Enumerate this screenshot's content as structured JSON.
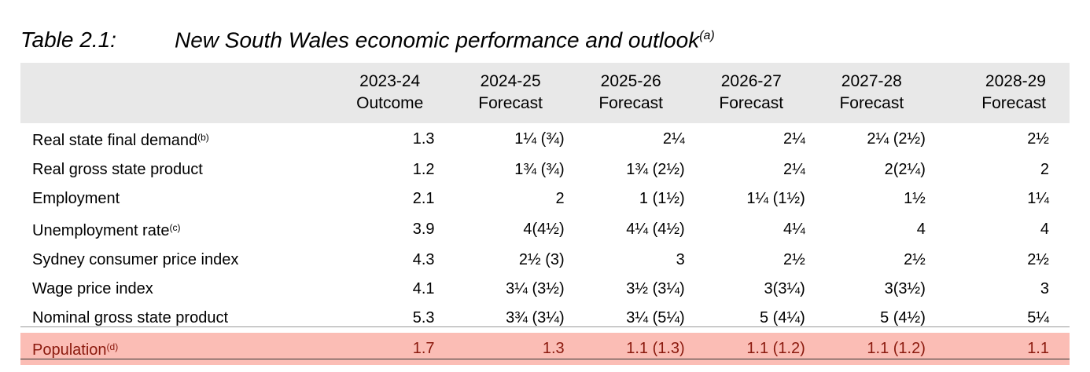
{
  "title": {
    "number": "Table 2.1:",
    "text": "New South Wales economic performance and outlook",
    "footnote": "(a)"
  },
  "columns": [
    {
      "year": "2023-24",
      "status": "Outcome"
    },
    {
      "year": "2024-25",
      "status": "Forecast"
    },
    {
      "year": "2025-26",
      "status": "Forecast"
    },
    {
      "year": "2026-27",
      "status": "Forecast"
    },
    {
      "year": "2027-28",
      "status": "Forecast"
    },
    {
      "year": "2028-29",
      "status": "Forecast"
    }
  ],
  "rows": [
    {
      "label": "Real state final demand",
      "note": "(b)",
      "values": [
        "1.3",
        "1¼ (¾)",
        "2¼",
        "2¼",
        "2¼ (2½)",
        "2½"
      ]
    },
    {
      "label": "Real gross state product",
      "note": "",
      "values": [
        "1.2",
        "1¾ (¾)",
        "1¾ (2½)",
        "2¼",
        "2(2¼)",
        "2"
      ]
    },
    {
      "label": "Employment",
      "note": "",
      "values": [
        "2.1",
        "2",
        "1 (1½)",
        "1¼ (1½)",
        "1½",
        "1¼"
      ]
    },
    {
      "label": "Unemployment rate",
      "note": "(c)",
      "values": [
        "3.9",
        "4(4½)",
        "4¼ (4½)",
        "4¼",
        "4",
        "4"
      ]
    },
    {
      "label": "Sydney consumer price index",
      "note": "",
      "values": [
        "4.3",
        "2½ (3)",
        "3",
        "2½",
        "2½",
        "2½"
      ]
    },
    {
      "label": "Wage price index",
      "note": "",
      "values": [
        "4.1",
        "3¼ (3½)",
        "3½ (3¼)",
        "3(3¼)",
        "3(3½)",
        "3"
      ]
    },
    {
      "label": "Nominal gross state product",
      "note": "",
      "values": [
        "5.3",
        "3¾ (3¼)",
        "3¼ (5¼)",
        "5 (4¼)",
        "5 (4½)",
        "5¼"
      ]
    },
    {
      "label": "Population",
      "note": "(d)",
      "values": [
        "1.7",
        "1.3",
        "1.1 (1.3)",
        "1.1 (1.2)",
        "1.1 (1.2)",
        "1.1"
      ],
      "highlight": true
    }
  ],
  "colors": {
    "header_bg": "#e8e8e8",
    "highlight_bg": "#fbbdb5",
    "highlight_text": "#8b1a0e"
  }
}
